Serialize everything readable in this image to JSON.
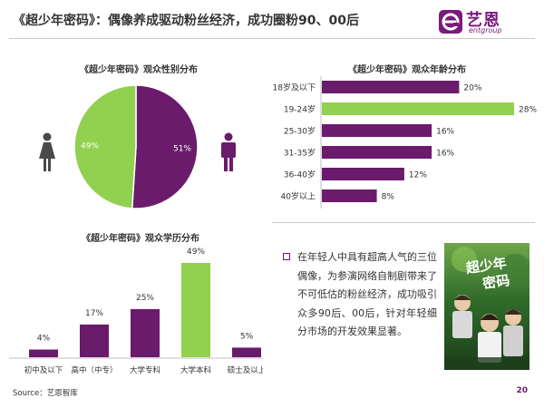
{
  "page": {
    "title": "《超少年密码》：偶像养成驱动粉丝经济，成功圈粉90、00后",
    "source": "Source：艺恩智库",
    "page_number": "20"
  },
  "logo": {
    "text_cn": "艺恩",
    "text_en": "entgroup",
    "brand_color": "#7b1a7b"
  },
  "colors": {
    "purple": "#6b1b6b",
    "green": "#92d050"
  },
  "icons": {
    "female": "female-person-icon",
    "male": "male-person-icon",
    "bullet": "square-bullet-icon"
  },
  "note": {
    "text": "在年轻人中具有超高人气的三位偶像，为参演网络自制剧带来了不可低估的粉丝经济，成功吸引众多90后、00后，针对年轻细分市场的开发效果显著。"
  },
  "poster": {
    "title_art": "超少年密码"
  },
  "chart_data": [
    {
      "type": "pie",
      "title": "《超少年密码》观众性别分布",
      "slices": [
        {
          "name": "男",
          "value": 51,
          "label": "51%",
          "color": "#6b1b6b"
        },
        {
          "name": "女",
          "value": 49,
          "label": "49%",
          "color": "#92d050"
        }
      ]
    },
    {
      "type": "bar",
      "orientation": "horizontal",
      "title": "《超少年密码》观众年龄分布",
      "categories": [
        "18岁及以下",
        "19-24岁",
        "25-30岁",
        "31-35岁",
        "36-40岁",
        "40岁以上"
      ],
      "values": [
        20,
        28,
        16,
        16,
        12,
        8
      ],
      "value_labels": [
        "20%",
        "28%",
        "16%",
        "16%",
        "12%",
        "8%"
      ],
      "highlight_index": 1,
      "xlim": [
        0,
        28
      ],
      "grid": false
    },
    {
      "type": "bar",
      "orientation": "vertical",
      "title": "《超少年密码》观众学历分布",
      "categories": [
        "初中及以下",
        "高中（中专）",
        "大学专科",
        "大学本科",
        "硕士及以上"
      ],
      "values": [
        4,
        17,
        25,
        49,
        5
      ],
      "value_labels": [
        "4%",
        "17%",
        "25%",
        "49%",
        "5%"
      ],
      "highlight_index": 3,
      "ylim": [
        0,
        49
      ],
      "grid": false
    }
  ]
}
